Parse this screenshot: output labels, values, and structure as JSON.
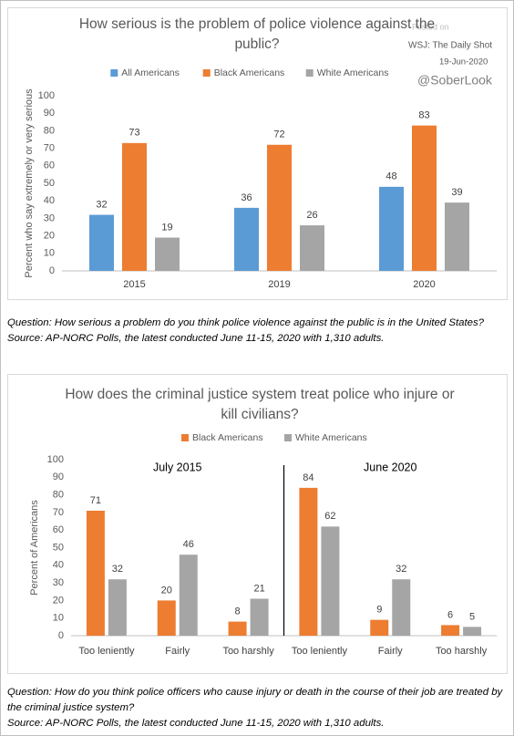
{
  "chart_data": [
    {
      "type": "bar",
      "title": "How serious is the problem of police violence against the public?",
      "annotations": [
        "Posted on",
        "WSJ: The Daily Shot",
        "19-Jun-2020",
        "@SoberLook"
      ],
      "y_label": "Percent who say extremely or very serious",
      "categories": [
        "2015",
        "2019",
        "2020"
      ],
      "series": [
        {
          "name": "All Americans",
          "color": "#5b9bd5",
          "values": [
            32,
            36,
            48
          ]
        },
        {
          "name": "Black Americans",
          "color": "#ed7d31",
          "values": [
            73,
            72,
            83
          ]
        },
        {
          "name": "White Americans",
          "color": "#a5a5a5",
          "values": [
            19,
            26,
            39
          ]
        }
      ],
      "ylim": [
        0,
        100
      ],
      "yticks": [
        0,
        10,
        20,
        30,
        40,
        50,
        60,
        70,
        80,
        90,
        100
      ],
      "notes": [
        "Question: How serious a problem do you think police violence against the public is in the United States?",
        "Source: AP-NORC Polls, the latest conducted June 11-15, 2020 with 1,310 adults."
      ]
    },
    {
      "type": "bar",
      "title": "How does the criminal justice system treat police who injure or kill civilians?",
      "y_label": "Percent of Americans",
      "panels": [
        "July 2015",
        "June 2020"
      ],
      "categories": [
        "Too leniently",
        "Fairly",
        "Too harshly",
        "Too leniently",
        "Fairly",
        "Too harshly"
      ],
      "series": [
        {
          "name": "Black Americans",
          "color": "#ed7d31",
          "values": [
            71,
            20,
            8,
            84,
            9,
            6
          ]
        },
        {
          "name": "White Americans",
          "color": "#a5a5a5",
          "values": [
            32,
            46,
            21,
            62,
            32,
            5
          ]
        }
      ],
      "ylim": [
        0,
        100
      ],
      "yticks": [
        0,
        10,
        20,
        30,
        40,
        50,
        60,
        70,
        80,
        90,
        100
      ],
      "notes": [
        "Question: How do you think police officers who cause injury or death in the course of their job are treated by the criminal justice system?",
        "Source: AP-NORC Polls, the latest conducted June 11-15, 2020 with 1,310 adults."
      ]
    }
  ]
}
